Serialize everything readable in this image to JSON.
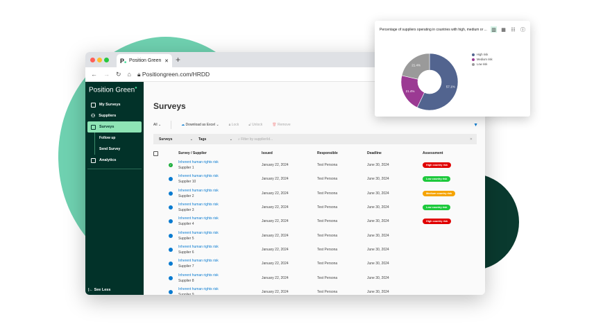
{
  "browser": {
    "tab_title": "Position Green",
    "url": "Positiongreen.com/HRDD"
  },
  "sidebar": {
    "brand": "Position Green",
    "items": [
      {
        "label": "My Surveys"
      },
      {
        "label": "Suppliers"
      },
      {
        "label": "Surveys",
        "active": true
      }
    ],
    "sub_items": [
      {
        "label": "Follow up"
      },
      {
        "label": "Send Survey"
      }
    ],
    "analytics": "Analytics",
    "see_less": "See Less"
  },
  "main": {
    "title": "Surveys",
    "toolbar": {
      "all": "All",
      "download": "Download as Excel",
      "lock": "Lock",
      "unlock": "Unlock",
      "remove": "Remove"
    },
    "filters": {
      "surveys": "Surveys",
      "tags": "Tags",
      "search_placeholder": "Filter by supplier/id..."
    },
    "columns": [
      "Survey / Supplier",
      "Issued",
      "Responsible",
      "Deadline",
      "Assessment"
    ],
    "rows": [
      {
        "status": "completed",
        "survey": "Inherent human rights risk",
        "supplier": "Supplier 1",
        "issued": "January 22, 2024",
        "responsible": "Test Persona",
        "deadline": "June 30, 2024",
        "assessment": "High country risk"
      },
      {
        "status": "pending",
        "survey": "Inherent human rights risk",
        "supplier": "Supplier 10",
        "issued": "January 22, 2024",
        "responsible": "Test Persona",
        "deadline": "June 30, 2024",
        "assessment": "Low country risk"
      },
      {
        "status": "pending",
        "survey": "Inherent human rights risk",
        "supplier": "Supplier 2",
        "issued": "January 22, 2024",
        "responsible": "Test Persona",
        "deadline": "June 30, 2024",
        "assessment": "Medium country risk"
      },
      {
        "status": "pending",
        "survey": "Inherent human rights risk",
        "supplier": "Supplier 3",
        "issued": "January 22, 2024",
        "responsible": "Test Persona",
        "deadline": "June 30, 2024",
        "assessment": "Low country risk"
      },
      {
        "status": "pending",
        "survey": "Inherent human rights risk",
        "supplier": "Supplier 4",
        "issued": "January 22, 2024",
        "responsible": "Test Persona",
        "deadline": "June 30, 2024",
        "assessment": "High country risk"
      },
      {
        "status": "pending",
        "survey": "Inherent human rights risk",
        "supplier": "Supplier 5",
        "issued": "January 22, 2024",
        "responsible": "Test Persona",
        "deadline": "June 30, 2024",
        "assessment": ""
      },
      {
        "status": "pending",
        "survey": "Inherent human rights risk",
        "supplier": "Supplier 6",
        "issued": "January 22, 2024",
        "responsible": "Test Persona",
        "deadline": "June 30, 2024",
        "assessment": ""
      },
      {
        "status": "pending",
        "survey": "Inherent human rights risk",
        "supplier": "Supplier 7",
        "issued": "January 22, 2024",
        "responsible": "Test Persona",
        "deadline": "June 30, 2024",
        "assessment": ""
      },
      {
        "status": "pending",
        "survey": "Inherent human rights risk",
        "supplier": "Supplier 8",
        "issued": "January 22, 2024",
        "responsible": "Test Persona",
        "deadline": "June 30, 2024",
        "assessment": ""
      },
      {
        "status": "pending",
        "survey": "Inherent human rights risk",
        "supplier": "Supplier 9",
        "issued": "January 22, 2024",
        "responsible": "Test Persona",
        "deadline": "June 30, 2024",
        "assessment": ""
      }
    ]
  },
  "badge_colors": {
    "High country risk": "#e00000",
    "Low country risk": "#1dc93c",
    "Medium country risk": "#f5a300"
  },
  "chart_data": {
    "type": "pie",
    "donut": true,
    "title": "Percentage of suppliers operating in countries with high, medium or ...",
    "legend_position": "right",
    "series": [
      {
        "name": "High risk",
        "value": 57.1,
        "label": "57.1%",
        "color": "#52648f"
      },
      {
        "name": "Medium risk",
        "value": 21.4,
        "label": "21.4%",
        "color": "#9b3a93"
      },
      {
        "name": "Low risk",
        "value": 21.4,
        "label": "21.4%",
        "color": "#9a9a9a"
      }
    ]
  }
}
